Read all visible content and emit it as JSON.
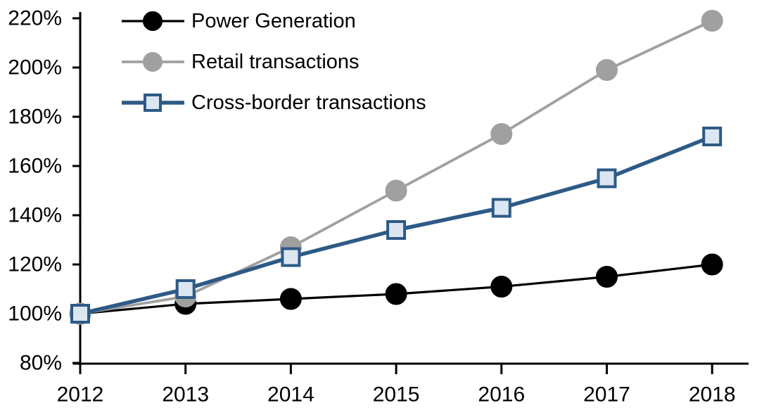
{
  "chart_data": {
    "type": "line",
    "title": "",
    "xlabel": "",
    "ylabel": "",
    "categories": [
      "2012",
      "2013",
      "2014",
      "2015",
      "2016",
      "2017",
      "2018"
    ],
    "series": [
      {
        "name": "Power Generation",
        "values": [
          100,
          104,
          106,
          108,
          111,
          115,
          120
        ],
        "color": "#000000",
        "marker": "circle",
        "marker_fill": "#000000"
      },
      {
        "name": "Retail transactions",
        "values": [
          100,
          107,
          127,
          150,
          173,
          199,
          219
        ],
        "color": "#A0A0A0",
        "marker": "circle",
        "marker_fill": "#A0A0A0"
      },
      {
        "name": "Cross-border transactions",
        "values": [
          100,
          110,
          123,
          134,
          143,
          155,
          172
        ],
        "color": "#2D5A87",
        "marker": "square",
        "marker_fill": "#DCE6F1"
      }
    ],
    "ylim": [
      80,
      220
    ],
    "ytick_step": 20,
    "y_tick_labels": [
      "80%",
      "100%",
      "120%",
      "140%",
      "160%",
      "180%",
      "200%",
      "220%"
    ],
    "x_tick_labels": [
      "2012",
      "2013",
      "2014",
      "2015",
      "2016",
      "2017",
      "2018"
    ],
    "unit": "percent, indexed",
    "grid": false,
    "legend_position": "top-left",
    "axis_color": "#000000",
    "background_color": "#FFFFFF"
  }
}
